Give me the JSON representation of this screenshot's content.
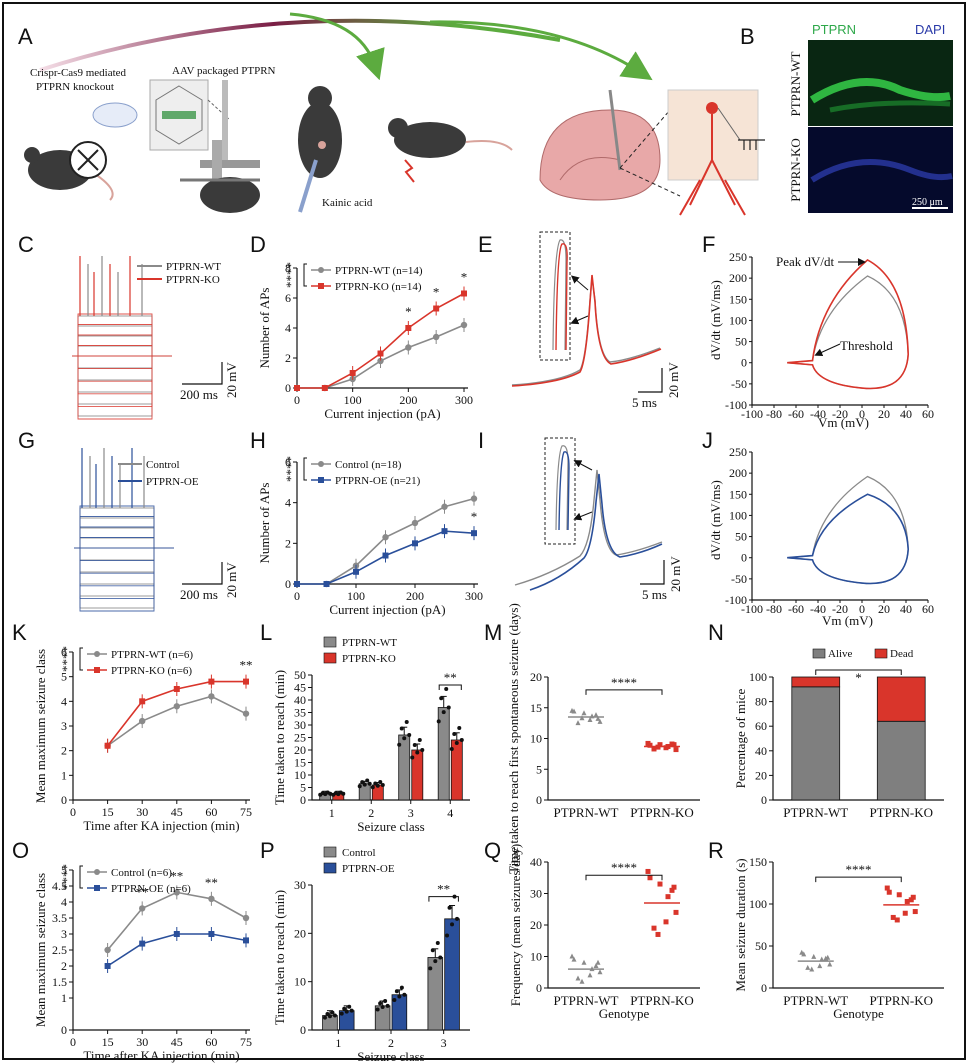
{
  "panels": {
    "A": "A",
    "B": "B",
    "C": "C",
    "D": "D",
    "E": "E",
    "F": "F",
    "G": "G",
    "H": "H",
    "I": "I",
    "J": "J",
    "K": "K",
    "L": "L",
    "M": "M",
    "N": "N",
    "O": "O",
    "P": "P",
    "Q": "Q",
    "R": "R"
  },
  "schematic": {
    "crispr_text_1": "Crispr-Cas9 mediated",
    "crispr_text_2": "PTPRN knockout",
    "aav_text": "AAV packaged PTPRN",
    "kainic_text": "Kainic acid"
  },
  "micrograph": {
    "stain1": "PTPRN",
    "stain2": "DAPI",
    "row1": "PTPRN-WT",
    "row2": "PTPRN-KO",
    "scale": "250 μm"
  },
  "traces_C": {
    "legend": [
      "PTPRN-WT",
      "PTPRN-KO"
    ],
    "scale_x": "200 ms",
    "scale_y": "20 mV"
  },
  "traces_G": {
    "legend": [
      "Control",
      "PTPRN-OE"
    ],
    "scale_x": "200 ms",
    "scale_y": "20 mV"
  },
  "spike_E": {
    "scale_x": "5 ms",
    "scale_y": "20 mV"
  },
  "spike_I": {
    "scale_x": "5 ms",
    "scale_y": "20 mV"
  },
  "phase_F": {
    "ann_peak": "Peak dV/dt",
    "ann_thr": "Threshold",
    "xlabel": "Vm (mV)",
    "ylabel": "dV/dt (mV/ms)"
  },
  "phase_J": {
    "xlabel": "Vm (mV)",
    "ylabel": "dV/dt (mV/ms)"
  },
  "colors": {
    "wt": "#8a8a8a",
    "ko": "#d9352b",
    "oe": "#2a4f9a",
    "alive": "#7f7f7f",
    "dead": "#d9352b",
    "green_arrow": "#5cab3f"
  },
  "chart_data": [
    {
      "panel": "D",
      "type": "line",
      "xlabel": "Current injection (pA)",
      "ylabel": "Number of APs",
      "x": [
        0,
        50,
        100,
        150,
        200,
        250,
        300
      ],
      "xlim": [
        0,
        300
      ],
      "ylim": [
        0,
        8
      ],
      "xticks": [
        "0",
        "100",
        "200",
        "300"
      ],
      "yticks": [
        "0",
        "2",
        "4",
        "6",
        "8"
      ],
      "series": [
        {
          "name": "PTPRN-WT (n=14)",
          "values": [
            0,
            0,
            0.6,
            1.8,
            2.7,
            3.4,
            4.2
          ]
        },
        {
          "name": "PTPRN-KO (n=14)",
          "values": [
            0,
            0,
            1.0,
            2.3,
            4.0,
            5.3,
            6.3
          ]
        }
      ],
      "sig_group": "****",
      "sig_points": [
        "*",
        "*",
        "*"
      ]
    },
    {
      "panel": "H",
      "type": "line",
      "xlabel": "Current injection (pA)",
      "ylabel": "Number of APs",
      "x": [
        0,
        50,
        100,
        150,
        200,
        250,
        300
      ],
      "xlim": [
        0,
        300
      ],
      "ylim": [
        0,
        6
      ],
      "xticks": [
        "0",
        "100",
        "200",
        "300"
      ],
      "yticks": [
        "0",
        "2",
        "4",
        "6"
      ],
      "series": [
        {
          "name": "Control (n=18)",
          "values": [
            0,
            0,
            0.9,
            2.3,
            3.0,
            3.8,
            4.2
          ]
        },
        {
          "name": "PTPRN-OE (n=21)",
          "values": [
            0,
            0,
            0.6,
            1.4,
            2.0,
            2.6,
            2.5
          ]
        }
      ],
      "sig_group": "****",
      "sig_points": [
        "*"
      ]
    },
    {
      "panel": "K",
      "type": "line",
      "xlabel": "Time after KA injection (min)",
      "ylabel": "Mean maximum seizure class",
      "x": [
        15,
        30,
        45,
        60,
        75
      ],
      "xlim": [
        0,
        75
      ],
      "ylim": [
        0,
        6
      ],
      "xticks": [
        "0",
        "15",
        "30",
        "45",
        "60",
        "75"
      ],
      "yticks": [
        "0",
        "1",
        "2",
        "3",
        "4",
        "5",
        "6"
      ],
      "series": [
        {
          "name": "PTPRN-WT (n=6)",
          "values": [
            2.2,
            3.2,
            3.8,
            4.2,
            3.5
          ]
        },
        {
          "name": "PTPRN-KO (n=6)",
          "values": [
            2.2,
            4.0,
            4.5,
            4.8,
            4.8
          ]
        }
      ],
      "sig_group": "****",
      "sig_points": [
        "**"
      ]
    },
    {
      "panel": "L",
      "type": "bar",
      "xlabel": "Seizure class",
      "ylabel": "Time taken to reach (min)",
      "categories": [
        "1",
        "2",
        "3",
        "4"
      ],
      "ylim": [
        0,
        50
      ],
      "yticks": [
        "0",
        "5",
        "10",
        "15",
        "20",
        "25",
        "30",
        "35",
        "40",
        "45",
        "50"
      ],
      "series": [
        {
          "name": "PTPRN-WT",
          "values": [
            2.5,
            6.5,
            26,
            37
          ]
        },
        {
          "name": "PTPRN-KO",
          "values": [
            2.5,
            6.0,
            20,
            24
          ]
        }
      ],
      "sig": "**"
    },
    {
      "panel": "M",
      "type": "scatter",
      "ylabel": "Time taken to reach first spontaneous seizure (days)",
      "categories": [
        "PTPRN-WT",
        "PTPRN-KO"
      ],
      "ylim": [
        0,
        20
      ],
      "yticks": [
        "0",
        "5",
        "10",
        "15",
        "20"
      ],
      "means": [
        13.5,
        8.7
      ],
      "sig": "****"
    },
    {
      "panel": "N",
      "type": "bar",
      "ylabel": "Percentage of mice",
      "categories": [
        "PTPRN-WT",
        "PTPRN-KO"
      ],
      "ylim": [
        0,
        100
      ],
      "yticks": [
        "0",
        "20",
        "40",
        "60",
        "80",
        "100"
      ],
      "series": [
        {
          "name": "Alive",
          "values": [
            92,
            64
          ]
        },
        {
          "name": "Dead",
          "values": [
            8,
            36
          ]
        }
      ],
      "sig": "*"
    },
    {
      "panel": "O",
      "type": "line",
      "xlabel": "Time after KA injection (min)",
      "ylabel": "Mean maximum seizure class",
      "x": [
        15,
        30,
        45,
        60,
        75
      ],
      "xlim": [
        0,
        75
      ],
      "ylim": [
        0,
        5
      ],
      "xticks": [
        "0",
        "15",
        "30",
        "45",
        "60",
        "75"
      ],
      "yticks": [
        "0",
        "1",
        "1.5",
        "2",
        "2.5",
        "3",
        "3.5",
        "4",
        "4.5",
        "5"
      ],
      "series": [
        {
          "name": "Control (n=6)",
          "values": [
            2.5,
            3.8,
            4.3,
            4.1,
            3.5
          ]
        },
        {
          "name": "PTPRN-OE (n=6)",
          "values": [
            2.0,
            2.7,
            3.0,
            3.0,
            2.8
          ]
        }
      ],
      "sig_group": "****",
      "sig_points": [
        "**",
        "**",
        "**"
      ]
    },
    {
      "panel": "P",
      "type": "bar",
      "xlabel": "Seizure class",
      "ylabel": "Time taken to reach (min)",
      "categories": [
        "1",
        "2",
        "3"
      ],
      "ylim": [
        0,
        30
      ],
      "yticks": [
        "0",
        "10",
        "20",
        "30"
      ],
      "series": [
        {
          "name": "Control",
          "values": [
            3.0,
            5.0,
            15.0
          ]
        },
        {
          "name": "PTPRN-OE",
          "values": [
            4.0,
            7.3,
            23.0
          ]
        }
      ],
      "sig": "**"
    },
    {
      "panel": "Q",
      "type": "scatter",
      "xlabel": "Genotype",
      "ylabel": "Frequency (mean seizures/day)",
      "categories": [
        "PTPRN-WT",
        "PTPRN-KO"
      ],
      "ylim": [
        0,
        40
      ],
      "yticks": [
        "0",
        "10",
        "20",
        "30",
        "40"
      ],
      "means": [
        6,
        27
      ],
      "sig": "****"
    },
    {
      "panel": "R",
      "type": "scatter",
      "xlabel": "Genotype",
      "ylabel": "Mean seizure duration (s)",
      "categories": [
        "PTPRN-WT",
        "PTPRN-KO"
      ],
      "ylim": [
        0,
        150
      ],
      "yticks": [
        "0",
        "50",
        "100",
        "150"
      ],
      "means": [
        32,
        99
      ],
      "sig": "****"
    }
  ]
}
